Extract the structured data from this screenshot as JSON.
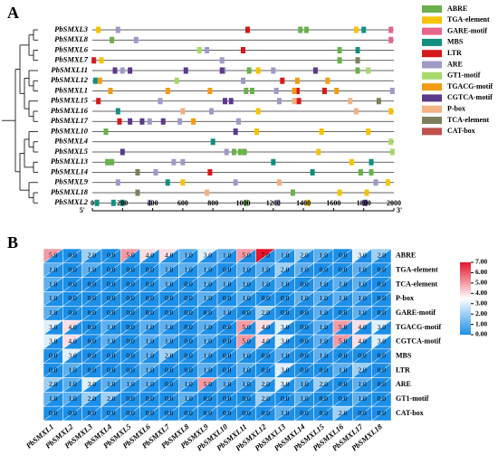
{
  "chart_data": [
    {
      "type": "motif-map",
      "panel": "A",
      "motifs": [
        {
          "name": "ABRE",
          "color": "#6ab04c"
        },
        {
          "name": "TGA-element",
          "color": "#f5c400"
        },
        {
          "name": "GARE-motif",
          "color": "#e8668a"
        },
        {
          "name": "MBS",
          "color": "#138f7f"
        },
        {
          "name": "LTR",
          "color": "#d7191c"
        },
        {
          "name": "ARE",
          "color": "#9e9ac8"
        },
        {
          "name": "GT1-motif",
          "color": "#a6d96a"
        },
        {
          "name": "TGACG-motif",
          "color": "#f39c12"
        },
        {
          "name": "CGTCA-motif",
          "color": "#5b3a8c"
        },
        {
          "name": "P-box",
          "color": "#f4b183"
        },
        {
          "name": "TCA-element",
          "color": "#7f7f5f"
        },
        {
          "name": "CAT-box",
          "color": "#c0504d"
        }
      ],
      "genes": [
        {
          "name": "PbSMXL3",
          "sites": [
            [
              1380,
              1420
            ],
            [
              40,
              1750
            ],
            [
              1980
            ],
            [
              1800
            ],
            [
              1030
            ],
            [
              170
            ],
            [],
            [],
            [],
            [],
            [],
            []
          ]
        },
        {
          "name": "PbSMXL8",
          "sites": [
            [
              130
            ],
            [],
            [
              1980
            ],
            [],
            [],
            [
              290
            ],
            [],
            [],
            [],
            [],
            [],
            []
          ]
        },
        {
          "name": "PbSMXL6",
          "sites": [
            [
              1640
            ],
            [],
            [],
            [
              1760
            ],
            [
              1000
            ],
            [
              760
            ],
            [
              710
            ],
            [],
            [],
            [],
            [],
            []
          ]
        },
        {
          "name": "PbSMXL7",
          "sites": [
            [
              1640
            ],
            [
              60
            ],
            [],
            [],
            [
              10
            ],
            [
              860
            ],
            [],
            [],
            [],
            [],
            [
              1760
            ],
            []
          ]
        },
        {
          "name": "PbSMXL11",
          "sites": [
            [
              1040,
              1760
            ],
            [
              1100
            ],
            [],
            [],
            [],
            [
              200,
              870,
              1200
            ],
            [
              1830
            ],
            [],
            [
              150,
              250,
              620,
              860,
              1480
            ],
            [],
            [],
            []
          ]
        },
        {
          "name": "PbSMXL12",
          "sites": [
            [],
            [],
            [],
            [
              20
            ],
            [
              1260
            ],
            [
              1000
            ],
            [
              560
            ],
            [
              50,
              1360,
              1560
            ],
            [],
            [],
            [],
            []
          ]
        },
        {
          "name": "PbSMXL1",
          "sites": [
            [
              1020,
              1060
            ],
            [],
            [],
            [],
            [
              1360,
              1540
            ],
            [
              1220,
              1990
            ],
            [],
            [
              120,
              500,
              780,
              1340,
              1620
            ],
            [],
            [],
            [],
            []
          ]
        },
        {
          "name": "PbSMXL15",
          "sites": [
            [],
            [],
            [],
            [],
            [
              40,
              1370
            ],
            [
              450,
              1240
            ],
            [],
            [],
            [
              880,
              920
            ],
            [
              1340,
              1710
            ],
            [
              1900
            ],
            []
          ]
        },
        {
          "name": "PbSMXL16",
          "sites": [
            [],
            [
              1100,
              1980
            ],
            [],
            [
              170
            ],
            [],
            [
              790
            ],
            [],
            [],
            [],
            [
              600,
              1750
            ],
            [],
            []
          ]
        },
        {
          "name": "PbSMXL17",
          "sites": [
            [],
            [],
            [],
            [],
            [
              180
            ],
            [
              380,
              580,
              970
            ],
            [],
            [
              670
            ],
            [
              250,
              330,
              470
            ],
            [],
            [],
            []
          ]
        },
        {
          "name": "PbSMXL10",
          "sites": [
            [
              90
            ],
            [
              1090,
              1520,
              1830
            ],
            [],
            [],
            [],
            [],
            [],
            [],
            [
              950
            ],
            [],
            [],
            []
          ]
        },
        {
          "name": "PbSMXL4",
          "sites": [
            [],
            [],
            [],
            [
              800
            ],
            [],
            [],
            [
              1980
            ],
            [],
            [],
            [],
            [],
            []
          ]
        },
        {
          "name": "PbSMXL5",
          "sites": [
            [
              940,
              980,
              1010
            ],
            [
              1500
            ],
            [],
            [],
            [],
            [
              890
            ],
            [
              1990
            ],
            [],
            [
              200
            ],
            [],
            [],
            []
          ]
        },
        {
          "name": "PbSMXL13",
          "sites": [
            [
              100,
              130
            ],
            [
              1720
            ],
            [],
            [
              1200,
              1850
            ],
            [],
            [
              540,
              600
            ],
            [],
            [],
            [],
            [],
            [],
            []
          ]
        },
        {
          "name": "PbSMXL14",
          "sites": [
            [
              1780,
              1850
            ],
            [],
            [],
            [
              1460
            ],
            [
              780
            ],
            [
              420
            ],
            [],
            [],
            [],
            [],
            [
              300
            ],
            []
          ]
        },
        {
          "name": "PbSMXL9",
          "sites": [
            [],
            [
              600,
              1960
            ],
            [],
            [
              500
            ],
            [],
            [
              170,
              950,
              1880
            ],
            [],
            [],
            [],
            [
              1240
            ],
            [],
            []
          ]
        },
        {
          "name": "PbSMXL18",
          "sites": [
            [
              1330
            ],
            [
              1640,
              1820
            ],
            [],
            [],
            [],
            [],
            [],
            [],
            [],
            [
              760
            ],
            [
              300
            ],
            []
          ]
        },
        {
          "name": "PbSMXL2",
          "sites": [
            [
              1020
            ],
            [
              1430
            ],
            [],
            [
              30,
              140,
              200
            ],
            [],
            [
              380,
              1230
            ],
            [],
            [],
            [
              1810
            ],
            [],
            [],
            []
          ]
        }
      ],
      "xlim": [
        0,
        2000
      ],
      "xticks": [
        0,
        200,
        400,
        600,
        800,
        1000,
        1200,
        1400,
        1600,
        1800,
        2000
      ],
      "end_labels": [
        "5'",
        "3'"
      ]
    },
    {
      "type": "heatmap",
      "panel": "B",
      "rows": [
        "ABRE",
        "TGA-element",
        "TCA-element",
        "P-box",
        "GARE-motif",
        "TGACG-motif",
        "CGTCA-motif",
        "MBS",
        "LTR",
        "ARE",
        "GT1-motif",
        "CAT-box"
      ],
      "columns": [
        "PbSMXL1",
        "PbSMXL2",
        "PbSMXL3",
        "PbSMXL4",
        "PbSMXL5",
        "PbSMXL6",
        "PbSMXL7",
        "PbSMXL8",
        "PbSMXL9",
        "PbSMXL10",
        "PbSMXL11",
        "PbSMXL12",
        "PbSMXL13",
        "PbSMXL14",
        "PbSMXL15",
        "PbSMXL16",
        "PbSMXL17",
        "PbSMXL18"
      ],
      "values": [
        [
          5,
          0,
          2,
          0,
          5,
          4,
          4,
          1,
          3,
          1,
          5,
          7,
          1,
          2,
          1,
          0,
          3,
          2
        ],
        [
          1,
          0,
          1,
          0,
          0,
          0,
          1,
          1,
          1,
          0,
          1,
          1,
          2,
          1,
          0,
          0,
          1,
          0
        ],
        [
          1,
          0,
          0,
          0,
          0,
          0,
          1,
          0,
          1,
          1,
          1,
          1,
          1,
          0,
          1,
          1,
          1,
          0
        ],
        [
          1,
          0,
          0,
          0,
          0,
          0,
          0,
          0,
          1,
          0,
          1,
          0,
          0,
          1,
          1,
          1,
          1,
          0
        ],
        [
          1,
          0,
          0,
          0,
          0,
          0,
          0,
          0,
          0,
          1,
          0,
          2,
          0,
          0,
          1,
          0,
          1,
          0
        ],
        [
          3,
          4,
          0,
          1,
          0,
          1,
          1,
          0,
          1,
          0,
          5,
          4,
          3,
          0,
          1,
          5,
          4,
          3
        ],
        [
          3,
          4,
          0,
          1,
          0,
          1,
          1,
          0,
          1,
          0,
          5,
          4,
          3,
          0,
          1,
          5,
          4,
          3
        ],
        [
          0,
          3,
          0,
          0,
          0,
          1,
          2,
          0,
          1,
          0,
          1,
          0,
          1,
          0,
          1,
          0,
          0,
          0
        ],
        [
          0,
          1,
          0,
          0,
          0,
          1,
          0,
          0,
          1,
          0,
          1,
          0,
          3,
          0,
          0,
          1,
          2,
          0
        ],
        [
          2,
          1,
          3,
          1,
          1,
          1,
          0,
          1,
          5,
          1,
          1,
          2,
          3,
          1,
          2,
          0,
          1,
          0
        ],
        [
          1,
          1,
          2,
          2,
          0,
          0,
          0,
          1,
          0,
          0,
          0,
          2,
          0,
          1,
          0,
          0,
          1,
          0
        ],
        [
          0,
          0,
          0,
          0,
          0,
          0,
          0,
          0,
          0,
          0,
          0,
          0,
          1,
          0,
          0,
          2,
          0,
          0
        ]
      ],
      "value_labels": [
        [
          "5.0",
          "0.0",
          "2.0",
          "0.0",
          "5.0",
          "4.0",
          "4.0",
          "1.0",
          "3.0",
          "1.0",
          "5.0",
          "7.0",
          "1.0",
          "2.0",
          "1.0",
          "0.0",
          "3.0",
          "2.0"
        ],
        [
          "1.0",
          "0.0",
          "1.0",
          "0.0",
          "0.0",
          "0.0",
          "1.0",
          "1.0",
          "1.0",
          "0.0",
          "1.0",
          "1.0",
          "2.0",
          "1.0",
          "0.0",
          "0.0",
          "1.0",
          "0.0"
        ],
        [
          "1.0",
          "0.0",
          "0.0",
          "0.0",
          "0.0",
          "0.0",
          "1.0",
          "0.0",
          "1.0",
          "1.0",
          "1.0",
          "1.0",
          "1.0",
          "0.0",
          "1.0",
          "1.0",
          "1.0",
          "0.0"
        ],
        [
          "1.0",
          "0.0",
          "0.0",
          "0.0",
          "0.0",
          "0.0",
          "0.0",
          "0.0",
          "1.0",
          "0.0",
          "1.0",
          "0.0",
          "0.0",
          "1.0",
          "1.0",
          "1.0",
          "1.0",
          "0.0"
        ],
        [
          "1.0",
          "0.0",
          "0.0",
          "0.0",
          "0.0",
          "0.0",
          "0.0",
          "0.0",
          "0.0",
          "1.0",
          "0.0",
          "2.0",
          "0.0",
          "0.0",
          "1.0",
          "0.0",
          "1.0",
          "0.0"
        ],
        [
          "3.0",
          "4.0",
          "0.0",
          "1.0",
          "0.0",
          "1.0",
          "1.0",
          "0.0",
          "1.0",
          "0.0",
          "5.0",
          "4.0",
          "3.0",
          "0.0",
          "1.0",
          "5.0",
          "4.0",
          "3.0"
        ],
        [
          "3.0",
          "4.0",
          "0.0",
          "1.0",
          "0.0",
          "1.0",
          "1.0",
          "0.0",
          "1.0",
          "0.0",
          "5.0",
          "4.0",
          "3.0",
          "0.0",
          "1.0",
          "5.0",
          "4.0",
          "3.0"
        ],
        [
          "0.0",
          "3.0",
          "0.0",
          "0.0",
          "0.0",
          "1.0",
          "2.0",
          "0.0",
          "1.0",
          "0.0",
          "1.0",
          "0.0",
          "1.0",
          "0.0",
          "1.0",
          "0.0",
          "0.0",
          "0.0"
        ],
        [
          "0.0",
          "1.0",
          "0.0",
          "0.0",
          "0.0",
          "1.0",
          "0.0",
          "0.0",
          "1.0",
          "0.0",
          "1.0",
          "0.0",
          "3.0",
          "0.0",
          "0.0",
          "1.0",
          "2.0",
          "0.0"
        ],
        [
          "2.0",
          "1.0",
          "3.0",
          "1.0",
          "1.0",
          "1.0",
          "0.0",
          "1.0",
          "5.0",
          "1.0",
          "1.0",
          "2.0",
          "3.0",
          "1.0",
          "2.0",
          "0.0",
          "1.0",
          "0.0"
        ],
        [
          "1.0",
          "1.0",
          "2.0",
          "2.0",
          "0.0",
          "0.0",
          "0.0",
          "1.0",
          "0.0",
          "0.0",
          "0.0",
          "2.0",
          "0.0",
          "1.0",
          "0.0",
          "0.0",
          "1.0",
          "0.0"
        ],
        [
          "0.0",
          "0.0",
          "0.0",
          "0.0",
          "0.0",
          "0.0",
          "0.0",
          "0.0",
          "0.0",
          "0.0",
          "0.0",
          "0.0",
          "1.0",
          "0.0",
          "0.0",
          "2.0",
          "0.0",
          "0.0"
        ]
      ],
      "clim": [
        0,
        7
      ],
      "colors": [
        "#1c8fe8",
        "#ffffff",
        "#e8142a"
      ],
      "base_color": "#1c8fe8",
      "colorbar_ticks": [
        {
          "value": 0,
          "label": "0.00"
        },
        {
          "value": 1,
          "label": "1.00"
        },
        {
          "value": 2,
          "label": "2.00"
        },
        {
          "value": 3,
          "label": "3.00"
        },
        {
          "value": 4,
          "label": "4.00"
        },
        {
          "value": 5,
          "label": "5.00"
        },
        {
          "value": 6,
          "label": "6.00"
        },
        {
          "value": 7,
          "label": "7.00"
        }
      ]
    }
  ]
}
